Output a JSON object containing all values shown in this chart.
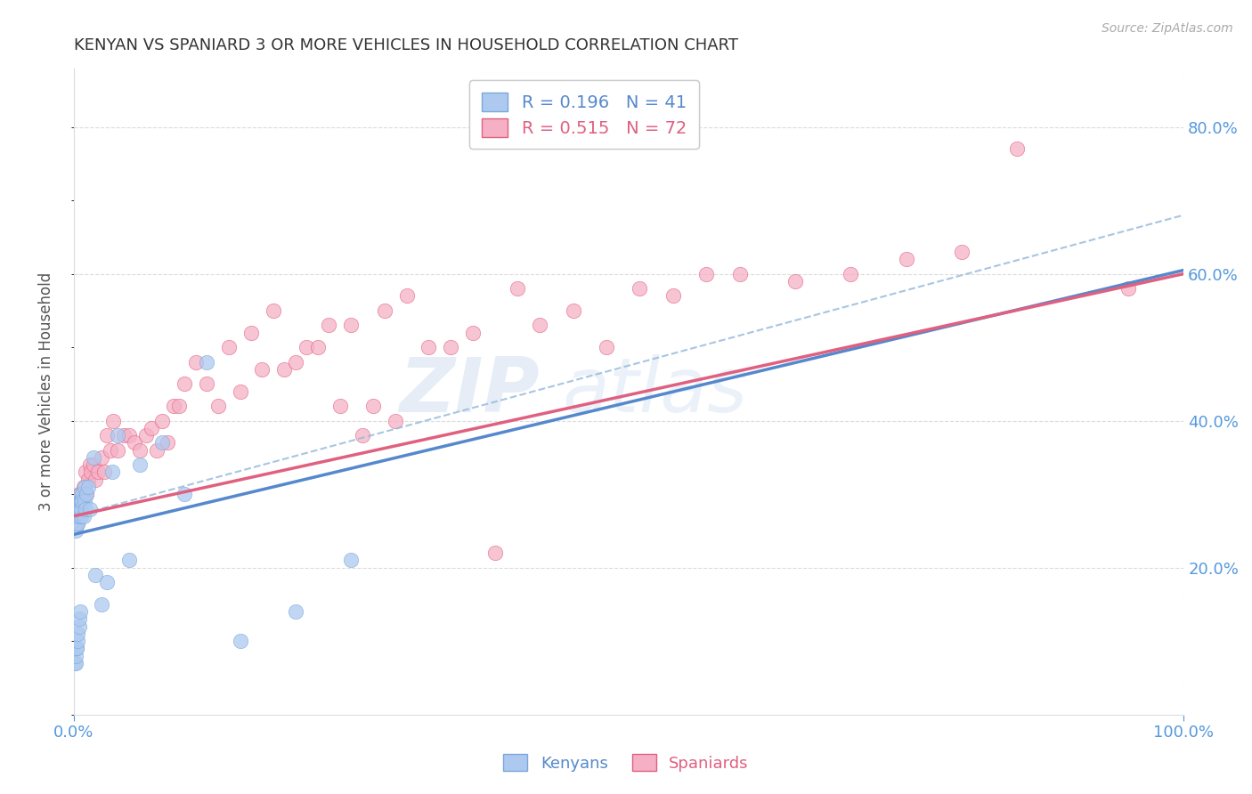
{
  "title": "KENYAN VS SPANIARD 3 OR MORE VEHICLES IN HOUSEHOLD CORRELATION CHART",
  "source": "Source: ZipAtlas.com",
  "ylabel": "3 or more Vehicles in Household",
  "xlim": [
    0.0,
    1.0
  ],
  "ylim": [
    0.0,
    0.88
  ],
  "background_color": "#ffffff",
  "grid_color": "#cccccc",
  "kenyan_color": "#adc9f0",
  "kenyan_edge": "#7aa8d8",
  "spaniard_color": "#f5b0c5",
  "spaniard_edge": "#e06080",
  "kenyan_line_color": "#5588cc",
  "spaniard_line_color": "#e06080",
  "dashed_line_color": "#99bbdd",
  "legend_R_kenyan": "R = 0.196",
  "legend_N_kenyan": "N = 41",
  "legend_R_spaniard": "R = 0.515",
  "legend_N_spaniard": "N = 72",
  "right_tick_color": "#5599dd",
  "x_tick_color": "#5599dd",
  "title_color": "#333333",
  "kenyan_x": [
    0.001,
    0.002,
    0.002,
    0.003,
    0.003,
    0.003,
    0.004,
    0.004,
    0.004,
    0.005,
    0.005,
    0.005,
    0.006,
    0.006,
    0.006,
    0.007,
    0.007,
    0.007,
    0.008,
    0.008,
    0.009,
    0.01,
    0.01,
    0.011,
    0.012,
    0.013,
    0.015,
    0.018,
    0.02,
    0.025,
    0.03,
    0.035,
    0.04,
    0.05,
    0.06,
    0.08,
    0.1,
    0.12,
    0.15,
    0.2,
    0.25
  ],
  "kenyan_y": [
    0.26,
    0.27,
    0.25,
    0.28,
    0.26,
    0.27,
    0.27,
    0.28,
    0.26,
    0.29,
    0.27,
    0.28,
    0.3,
    0.28,
    0.29,
    0.27,
    0.29,
    0.28,
    0.3,
    0.29,
    0.27,
    0.29,
    0.31,
    0.28,
    0.3,
    0.31,
    0.28,
    0.35,
    0.19,
    0.15,
    0.18,
    0.33,
    0.38,
    0.21,
    0.34,
    0.37,
    0.3,
    0.48,
    0.1,
    0.14,
    0.21
  ],
  "kenyan_y_low": [
    0.07,
    0.07,
    0.08,
    0.09,
    0.09,
    0.1,
    0.11,
    0.12,
    0.13,
    0.14
  ],
  "kenyan_x_low": [
    0.001,
    0.002,
    0.002,
    0.003,
    0.003,
    0.004,
    0.004,
    0.005,
    0.005,
    0.006
  ],
  "spaniard_x": [
    0.003,
    0.004,
    0.005,
    0.006,
    0.007,
    0.008,
    0.009,
    0.01,
    0.011,
    0.012,
    0.013,
    0.015,
    0.016,
    0.018,
    0.02,
    0.022,
    0.025,
    0.028,
    0.03,
    0.033,
    0.036,
    0.04,
    0.045,
    0.05,
    0.055,
    0.06,
    0.065,
    0.07,
    0.075,
    0.08,
    0.085,
    0.09,
    0.095,
    0.1,
    0.11,
    0.12,
    0.13,
    0.14,
    0.15,
    0.16,
    0.17,
    0.18,
    0.19,
    0.2,
    0.21,
    0.22,
    0.23,
    0.24,
    0.25,
    0.26,
    0.27,
    0.28,
    0.29,
    0.3,
    0.32,
    0.34,
    0.36,
    0.38,
    0.4,
    0.42,
    0.45,
    0.48,
    0.51,
    0.54,
    0.57,
    0.6,
    0.65,
    0.7,
    0.75,
    0.8,
    0.85,
    0.95
  ],
  "spaniard_y": [
    0.28,
    0.26,
    0.3,
    0.28,
    0.3,
    0.29,
    0.31,
    0.3,
    0.33,
    0.3,
    0.32,
    0.34,
    0.33,
    0.34,
    0.32,
    0.33,
    0.35,
    0.33,
    0.38,
    0.36,
    0.4,
    0.36,
    0.38,
    0.38,
    0.37,
    0.36,
    0.38,
    0.39,
    0.36,
    0.4,
    0.37,
    0.42,
    0.42,
    0.45,
    0.48,
    0.45,
    0.42,
    0.5,
    0.44,
    0.52,
    0.47,
    0.55,
    0.47,
    0.48,
    0.5,
    0.5,
    0.53,
    0.42,
    0.53,
    0.38,
    0.42,
    0.55,
    0.4,
    0.57,
    0.5,
    0.5,
    0.52,
    0.22,
    0.58,
    0.53,
    0.55,
    0.5,
    0.58,
    0.57,
    0.6,
    0.6,
    0.59,
    0.6,
    0.62,
    0.63,
    0.77,
    0.58
  ],
  "kenyan_line_x0": 0.0,
  "kenyan_line_y0": 0.245,
  "kenyan_line_x1": 0.25,
  "kenyan_line_y1": 0.335,
  "spaniard_line_x0": 0.0,
  "spaniard_line_y0": 0.27,
  "spaniard_line_x1": 1.0,
  "spaniard_line_y1": 0.6,
  "dash_line_x0": 0.0,
  "dash_line_y0": 0.27,
  "dash_line_x1": 1.0,
  "dash_line_y1": 0.68
}
